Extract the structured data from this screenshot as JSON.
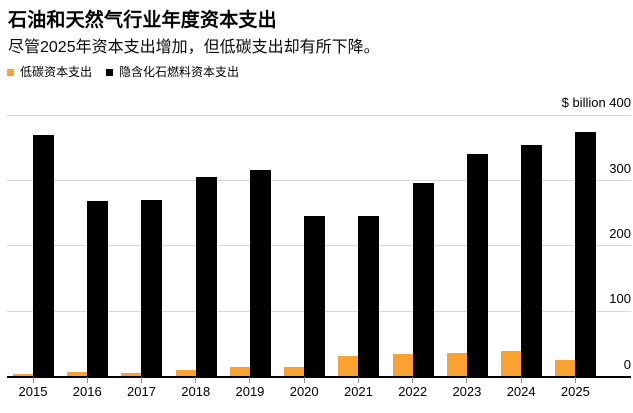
{
  "header": {
    "title": "石油和天然气行业年度资本支出",
    "subtitle": "尽管2025年资本支出增加，但低碳支出却有所下降。",
    "legend": [
      {
        "id": "low-carbon",
        "label": "低碳资本支出",
        "color": "#F9A232"
      },
      {
        "id": "fossil",
        "label": "隐含化石燃料资本支出",
        "color": "#000000"
      }
    ]
  },
  "chart_data": {
    "type": "bar",
    "title": "石油和天然气行业年度资本支出",
    "subtitle": "尽管2025年资本支出增加，但低碳支出却有所下降。",
    "unit_label": "$ billion",
    "categories": [
      "2015",
      "2016",
      "2017",
      "2018",
      "2019",
      "2020",
      "2021",
      "2022",
      "2023",
      "2024",
      "2025"
    ],
    "series": [
      {
        "id": "low-carbon",
        "name": "低碳资本支出",
        "color": "#F9A232",
        "values": [
          3,
          6,
          4,
          9,
          14,
          14,
          30,
          33,
          35,
          38,
          25
        ]
      },
      {
        "id": "fossil",
        "name": "隐含化石燃料资本支出",
        "color": "#000000",
        "values": [
          369,
          268,
          269,
          304,
          315,
          245,
          245,
          295,
          340,
          353,
          373
        ]
      }
    ],
    "ylim": [
      0,
      400
    ],
    "yticks": [
      0,
      100,
      200,
      300,
      400
    ],
    "grid": true,
    "legend_position": "top-left",
    "bar_grouping": "paired-side-by-side"
  },
  "colors": {
    "background": "#ffffff",
    "gridline": "#d6d6d6",
    "axis": "#000000",
    "tick": "#8f8f8f",
    "text": "#000000",
    "accent_orange": "#F9A232"
  }
}
